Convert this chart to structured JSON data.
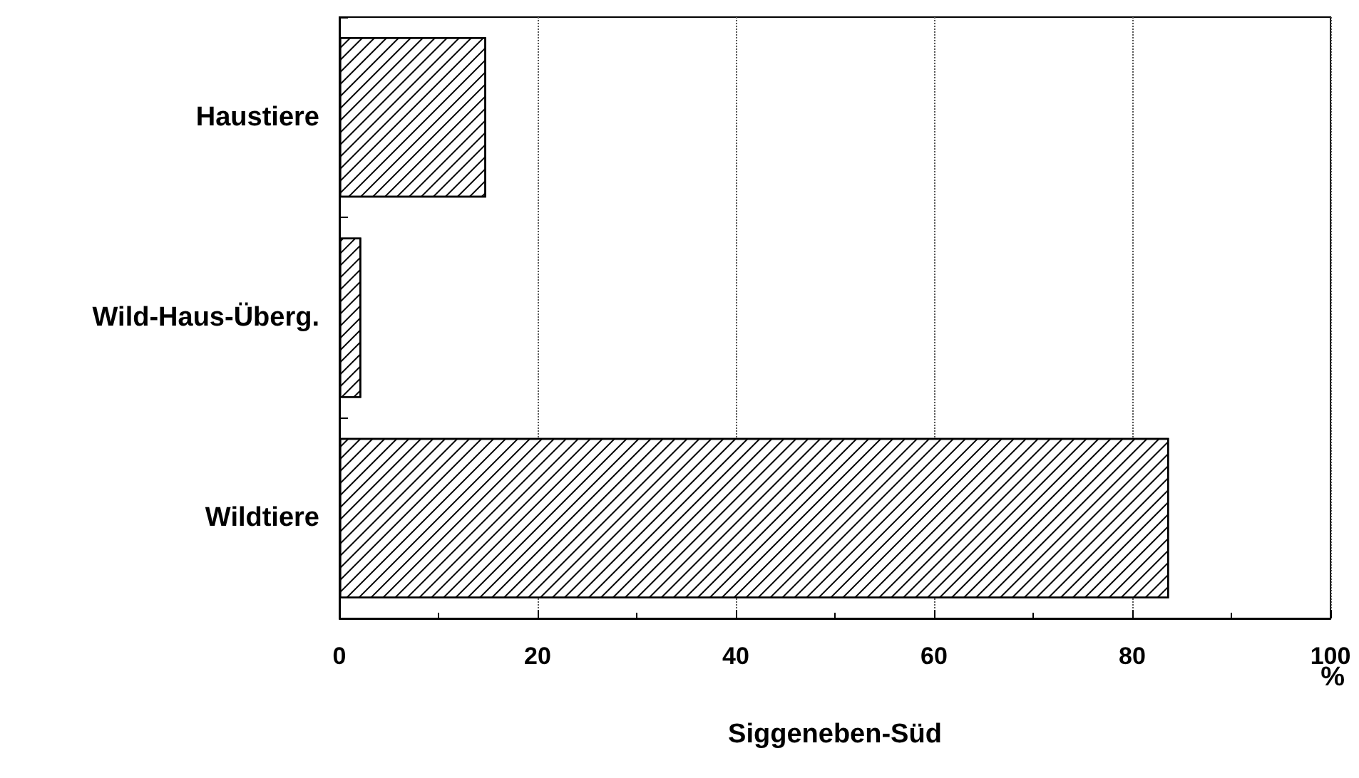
{
  "chart_data": {
    "type": "bar",
    "orientation": "horizontal",
    "xlabel": "Siggeneben-Süd",
    "annotations": [
      "%"
    ],
    "categories": [
      "Haustiere",
      "Wild-Haus-Überg.",
      "Wildtiere"
    ],
    "values": [
      14.8,
      2.2,
      83.7
    ],
    "color": "#ffffff",
    "xlim": [
      0,
      100
    ],
    "xticks": [
      0,
      20,
      40,
      60,
      80,
      100
    ],
    "grid": "x",
    "line_style": "dotted"
  }
}
